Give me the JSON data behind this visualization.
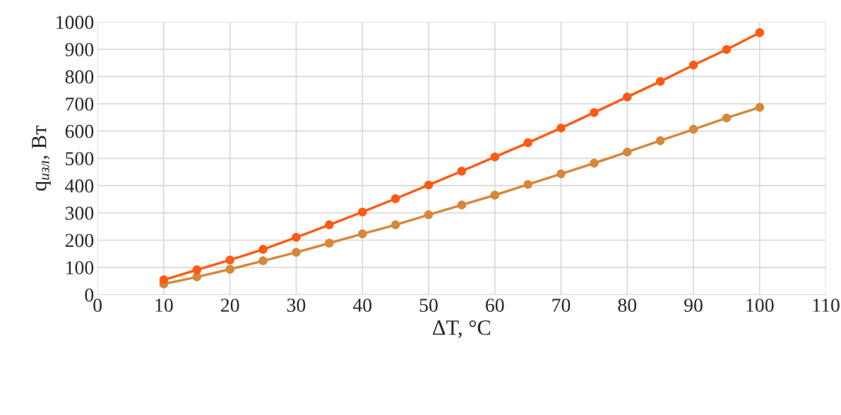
{
  "chart_data": {
    "type": "line",
    "xlabel": "ΔT, °C",
    "ylabel": "q$_{изл}$, Вт",
    "x": [
      10,
      15,
      20,
      25,
      30,
      35,
      40,
      45,
      50,
      55,
      60,
      65,
      70,
      75,
      80,
      85,
      90,
      95,
      100
    ],
    "series": [
      {
        "color": "#d5883a",
        "values": [
          39,
          65,
          93,
          124,
          155,
          189,
          223,
          256,
          293,
          329,
          365,
          404,
          443,
          482,
          523,
          565,
          606,
          648,
          687
        ]
      },
      {
        "color": "#ff5a14",
        "values": [
          54,
          91,
          127,
          166,
          210,
          256,
          303,
          352,
          402,
          453,
          505,
          557,
          611,
          668,
          725,
          782,
          842,
          899,
          961
        ]
      }
    ],
    "xlim": [
      0,
      110
    ],
    "xticks": [
      0,
      10,
      20,
      30,
      40,
      50,
      60,
      70,
      80,
      90,
      100,
      110
    ],
    "ylim": [
      0,
      1000
    ],
    "yticks": [
      0,
      100,
      200,
      300,
      400,
      500,
      600,
      700,
      800,
      900,
      1000
    ],
    "grid": true,
    "marker": "circle",
    "line_style": "solid"
  }
}
